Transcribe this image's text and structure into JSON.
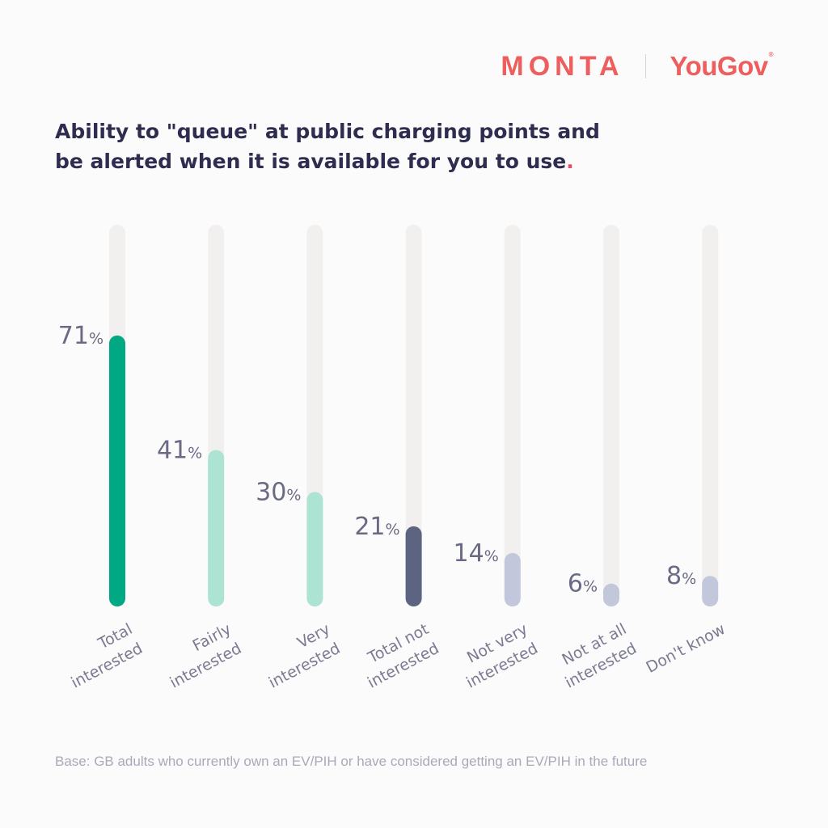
{
  "brand": {
    "logo_left": "MONTA",
    "logo_right": "YouGov",
    "logo_right_mark": "®"
  },
  "title_line1": "Ability to \"queue\" at public charging points and",
  "title_line2": "be alerted when it is available for you to use",
  "title_dot": ".",
  "footnote": "Base: GB adults who currently own an EV/PIH or have considered getting an EV/PIH in the future",
  "colors": {
    "background": "#fcfbfb",
    "track": "#f2f0ef",
    "brand_red": "#ee5e5e",
    "title": "#2e2d4f",
    "value_text": "#6a6a84",
    "label_text": "#7a7a92"
  },
  "chart_data": {
    "type": "bar",
    "categories": [
      [
        "Total",
        "interested"
      ],
      [
        "Fairly",
        "interested"
      ],
      [
        "Very",
        "interested"
      ],
      [
        "Total not",
        "interested"
      ],
      [
        "Not very",
        "interested"
      ],
      [
        "Not at all",
        "interested"
      ],
      [
        "Don't know"
      ]
    ],
    "values": [
      71,
      41,
      30,
      21,
      14,
      6,
      8
    ],
    "value_suffix": "%",
    "bar_colors": [
      "#00a884",
      "#ace3d3",
      "#ace3d3",
      "#5d6482",
      "#c3c7dc",
      "#c3c7dc",
      "#c3c7dc"
    ],
    "ylim": [
      0,
      100
    ],
    "grid": false,
    "legend": "none"
  }
}
